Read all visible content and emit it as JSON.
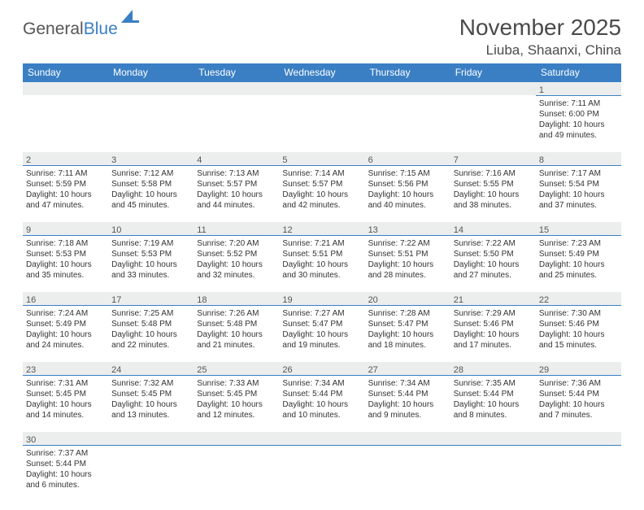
{
  "logo": {
    "part1": "General",
    "part2": "Blue"
  },
  "title": "November 2025",
  "location": "Liuba, Shaanxi, China",
  "weekdays": [
    "Sunday",
    "Monday",
    "Tuesday",
    "Wednesday",
    "Thursday",
    "Friday",
    "Saturday"
  ],
  "colors": {
    "header_bg": "#3a7fc4",
    "daynum_bg": "#eceeee",
    "text": "#333333",
    "title": "#4a4a4a"
  },
  "leading_blanks": 6,
  "days": [
    {
      "n": "1",
      "sunrise": "Sunrise: 7:11 AM",
      "sunset": "Sunset: 6:00 PM",
      "dl1": "Daylight: 10 hours",
      "dl2": "and 49 minutes."
    },
    {
      "n": "2",
      "sunrise": "Sunrise: 7:11 AM",
      "sunset": "Sunset: 5:59 PM",
      "dl1": "Daylight: 10 hours",
      "dl2": "and 47 minutes."
    },
    {
      "n": "3",
      "sunrise": "Sunrise: 7:12 AM",
      "sunset": "Sunset: 5:58 PM",
      "dl1": "Daylight: 10 hours",
      "dl2": "and 45 minutes."
    },
    {
      "n": "4",
      "sunrise": "Sunrise: 7:13 AM",
      "sunset": "Sunset: 5:57 PM",
      "dl1": "Daylight: 10 hours",
      "dl2": "and 44 minutes."
    },
    {
      "n": "5",
      "sunrise": "Sunrise: 7:14 AM",
      "sunset": "Sunset: 5:57 PM",
      "dl1": "Daylight: 10 hours",
      "dl2": "and 42 minutes."
    },
    {
      "n": "6",
      "sunrise": "Sunrise: 7:15 AM",
      "sunset": "Sunset: 5:56 PM",
      "dl1": "Daylight: 10 hours",
      "dl2": "and 40 minutes."
    },
    {
      "n": "7",
      "sunrise": "Sunrise: 7:16 AM",
      "sunset": "Sunset: 5:55 PM",
      "dl1": "Daylight: 10 hours",
      "dl2": "and 38 minutes."
    },
    {
      "n": "8",
      "sunrise": "Sunrise: 7:17 AM",
      "sunset": "Sunset: 5:54 PM",
      "dl1": "Daylight: 10 hours",
      "dl2": "and 37 minutes."
    },
    {
      "n": "9",
      "sunrise": "Sunrise: 7:18 AM",
      "sunset": "Sunset: 5:53 PM",
      "dl1": "Daylight: 10 hours",
      "dl2": "and 35 minutes."
    },
    {
      "n": "10",
      "sunrise": "Sunrise: 7:19 AM",
      "sunset": "Sunset: 5:53 PM",
      "dl1": "Daylight: 10 hours",
      "dl2": "and 33 minutes."
    },
    {
      "n": "11",
      "sunrise": "Sunrise: 7:20 AM",
      "sunset": "Sunset: 5:52 PM",
      "dl1": "Daylight: 10 hours",
      "dl2": "and 32 minutes."
    },
    {
      "n": "12",
      "sunrise": "Sunrise: 7:21 AM",
      "sunset": "Sunset: 5:51 PM",
      "dl1": "Daylight: 10 hours",
      "dl2": "and 30 minutes."
    },
    {
      "n": "13",
      "sunrise": "Sunrise: 7:22 AM",
      "sunset": "Sunset: 5:51 PM",
      "dl1": "Daylight: 10 hours",
      "dl2": "and 28 minutes."
    },
    {
      "n": "14",
      "sunrise": "Sunrise: 7:22 AM",
      "sunset": "Sunset: 5:50 PM",
      "dl1": "Daylight: 10 hours",
      "dl2": "and 27 minutes."
    },
    {
      "n": "15",
      "sunrise": "Sunrise: 7:23 AM",
      "sunset": "Sunset: 5:49 PM",
      "dl1": "Daylight: 10 hours",
      "dl2": "and 25 minutes."
    },
    {
      "n": "16",
      "sunrise": "Sunrise: 7:24 AM",
      "sunset": "Sunset: 5:49 PM",
      "dl1": "Daylight: 10 hours",
      "dl2": "and 24 minutes."
    },
    {
      "n": "17",
      "sunrise": "Sunrise: 7:25 AM",
      "sunset": "Sunset: 5:48 PM",
      "dl1": "Daylight: 10 hours",
      "dl2": "and 22 minutes."
    },
    {
      "n": "18",
      "sunrise": "Sunrise: 7:26 AM",
      "sunset": "Sunset: 5:48 PM",
      "dl1": "Daylight: 10 hours",
      "dl2": "and 21 minutes."
    },
    {
      "n": "19",
      "sunrise": "Sunrise: 7:27 AM",
      "sunset": "Sunset: 5:47 PM",
      "dl1": "Daylight: 10 hours",
      "dl2": "and 19 minutes."
    },
    {
      "n": "20",
      "sunrise": "Sunrise: 7:28 AM",
      "sunset": "Sunset: 5:47 PM",
      "dl1": "Daylight: 10 hours",
      "dl2": "and 18 minutes."
    },
    {
      "n": "21",
      "sunrise": "Sunrise: 7:29 AM",
      "sunset": "Sunset: 5:46 PM",
      "dl1": "Daylight: 10 hours",
      "dl2": "and 17 minutes."
    },
    {
      "n": "22",
      "sunrise": "Sunrise: 7:30 AM",
      "sunset": "Sunset: 5:46 PM",
      "dl1": "Daylight: 10 hours",
      "dl2": "and 15 minutes."
    },
    {
      "n": "23",
      "sunrise": "Sunrise: 7:31 AM",
      "sunset": "Sunset: 5:45 PM",
      "dl1": "Daylight: 10 hours",
      "dl2": "and 14 minutes."
    },
    {
      "n": "24",
      "sunrise": "Sunrise: 7:32 AM",
      "sunset": "Sunset: 5:45 PM",
      "dl1": "Daylight: 10 hours",
      "dl2": "and 13 minutes."
    },
    {
      "n": "25",
      "sunrise": "Sunrise: 7:33 AM",
      "sunset": "Sunset: 5:45 PM",
      "dl1": "Daylight: 10 hours",
      "dl2": "and 12 minutes."
    },
    {
      "n": "26",
      "sunrise": "Sunrise: 7:34 AM",
      "sunset": "Sunset: 5:44 PM",
      "dl1": "Daylight: 10 hours",
      "dl2": "and 10 minutes."
    },
    {
      "n": "27",
      "sunrise": "Sunrise: 7:34 AM",
      "sunset": "Sunset: 5:44 PM",
      "dl1": "Daylight: 10 hours",
      "dl2": "and 9 minutes."
    },
    {
      "n": "28",
      "sunrise": "Sunrise: 7:35 AM",
      "sunset": "Sunset: 5:44 PM",
      "dl1": "Daylight: 10 hours",
      "dl2": "and 8 minutes."
    },
    {
      "n": "29",
      "sunrise": "Sunrise: 7:36 AM",
      "sunset": "Sunset: 5:44 PM",
      "dl1": "Daylight: 10 hours",
      "dl2": "and 7 minutes."
    },
    {
      "n": "30",
      "sunrise": "Sunrise: 7:37 AM",
      "sunset": "Sunset: 5:44 PM",
      "dl1": "Daylight: 10 hours",
      "dl2": "and 6 minutes."
    }
  ]
}
